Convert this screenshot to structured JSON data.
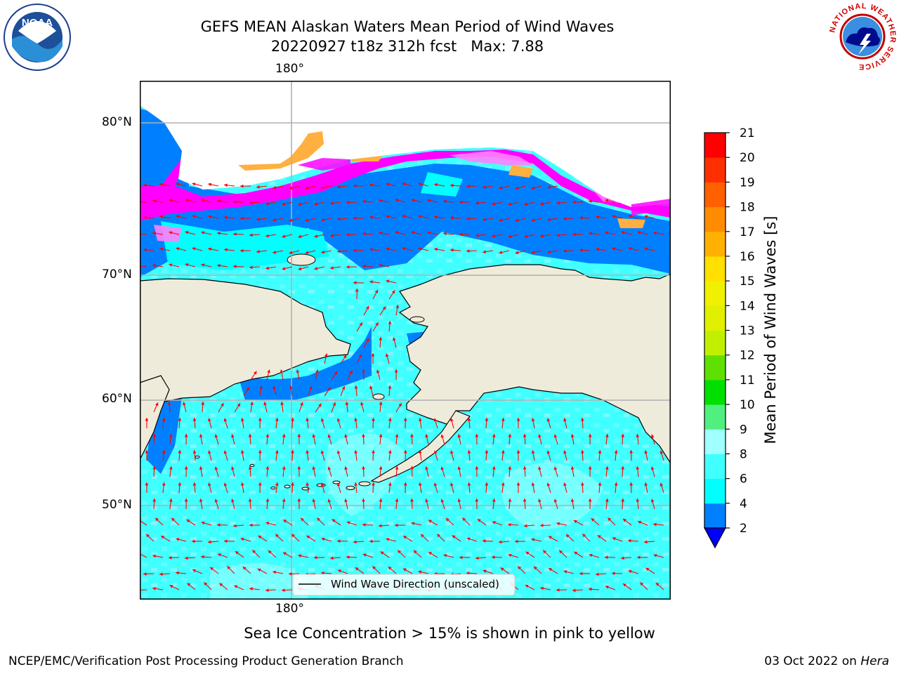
{
  "title": {
    "line1": "GEFS MEAN Alaskan Waters Mean Period of Wind Waves",
    "line2": "20220927 t18z 312h fcst   Max: 7.88"
  },
  "map": {
    "top_lon_label": "180°",
    "bottom_lon_label": "180°",
    "lat_labels": [
      "80°N",
      "70°N",
      "60°N",
      "50°N"
    ],
    "legend_label": "Wind Wave Direction (unscaled)",
    "colors": {
      "land": "#efebdb",
      "arrow": "#ff0000",
      "grid": "#b0b0b0"
    },
    "field_colors": [
      "#0080ff",
      "#00ffff",
      "#40ffff",
      "#a0ffff"
    ],
    "ice_colors": [
      "#ff00ff",
      "#ff80ff",
      "#ffa040",
      "#ffc040"
    ]
  },
  "colorbar": {
    "label": "Mean Period of Wind Waves [s]",
    "ticks": [
      "2",
      "4",
      "6",
      "8",
      "9",
      "10",
      "11",
      "12",
      "13",
      "14",
      "15",
      "16",
      "17",
      "18",
      "19",
      "20",
      "21"
    ],
    "bands": [
      {
        "from": 2,
        "to": 4,
        "color": "#0080ff"
      },
      {
        "from": 4,
        "to": 6,
        "color": "#00ffff"
      },
      {
        "from": 6,
        "to": 8,
        "color": "#40ffff"
      },
      {
        "from": 8,
        "to": 9,
        "color": "#a0ffff"
      },
      {
        "from": 9,
        "to": 10,
        "color": "#50f080"
      },
      {
        "from": 10,
        "to": 11,
        "color": "#00e000"
      },
      {
        "from": 11,
        "to": 12,
        "color": "#60e000"
      },
      {
        "from": 12,
        "to": 13,
        "color": "#c0f000"
      },
      {
        "from": 13,
        "to": 14,
        "color": "#e0f000"
      },
      {
        "from": 14,
        "to": 15,
        "color": "#f0f000"
      },
      {
        "from": 15,
        "to": 16,
        "color": "#ffe000"
      },
      {
        "from": 16,
        "to": 17,
        "color": "#ffb000"
      },
      {
        "from": 17,
        "to": 18,
        "color": "#ff8c00"
      },
      {
        "from": 18,
        "to": 19,
        "color": "#ff6000"
      },
      {
        "from": 19,
        "to": 20,
        "color": "#ff3000"
      },
      {
        "from": 20,
        "to": 21,
        "color": "#ff0000"
      }
    ],
    "extend_low_color": "#0000ff"
  },
  "ice_note": "Sea Ice Concentration > 15% is shown in pink to yellow",
  "footer": {
    "left": "NCEP/EMC/Verification Post Processing Product Generation Branch",
    "right_prefix": "03 Oct 2022 on ",
    "right_host": "Hera"
  },
  "logos": {
    "noaa": "NOAA",
    "nws_ring": "NATIONAL WEATHER SERVICE"
  }
}
